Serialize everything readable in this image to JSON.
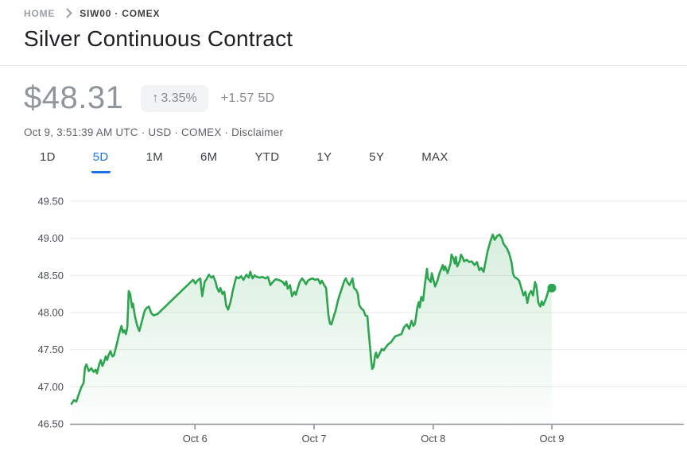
{
  "breadcrumb": {
    "home": "HOME",
    "symbol": "SIW00 · COMEX"
  },
  "header": {
    "title": "Silver Continuous Contract"
  },
  "quote": {
    "price": "$48.31",
    "arrow": "↑",
    "change_percent": "3.35%",
    "change_abs": "+1.57 5D",
    "meta_text": "Oct 9, 3:51:39 AM UTC · USD · COMEX · ",
    "disclaimer": "Disclaimer"
  },
  "tabs": [
    {
      "label": "1D",
      "active": false
    },
    {
      "label": "5D",
      "active": true
    },
    {
      "label": "1M",
      "active": false
    },
    {
      "label": "6M",
      "active": false
    },
    {
      "label": "YTD",
      "active": false
    },
    {
      "label": "1Y",
      "active": false
    },
    {
      "label": "5Y",
      "active": false
    },
    {
      "label": "MAX",
      "active": false
    }
  ],
  "colors": {
    "accent_blue": "#1a73e8",
    "chart_green": "#2da44e",
    "pill_bg": "#f1f3f4",
    "price_gray": "#8f959b",
    "grid_line": "#e9eaec",
    "axis_line": "#8a9095",
    "axis_text": "#4a4e52"
  },
  "chart_data": {
    "type": "area",
    "title": "Silver Continuous Contract — 5D price chart",
    "xlabel": "",
    "ylabel": "",
    "ylim": [
      46.5,
      49.5
    ],
    "grid": true,
    "legend": "none",
    "y_ticks": [
      {
        "label": "49.50",
        "value": 49.5
      },
      {
        "label": "49.00",
        "value": 49.0
      },
      {
        "label": "48.50",
        "value": 48.5
      },
      {
        "label": "48.00",
        "value": 48.0
      },
      {
        "label": "47.50",
        "value": 47.5
      },
      {
        "label": "47.00",
        "value": 47.0
      },
      {
        "label": "46.50",
        "value": 46.5
      }
    ],
    "x_ticks": [
      {
        "label": "Oct 6",
        "t": 0.257
      },
      {
        "label": "Oct 7",
        "t": 0.505
      },
      {
        "label": "Oct 8",
        "t": 0.753
      },
      {
        "label": "Oct 9",
        "t": 1.0
      }
    ],
    "series": [
      {
        "name": "price",
        "points": [
          [
            0.0,
            46.77
          ],
          [
            0.005,
            46.82
          ],
          [
            0.01,
            46.8
          ],
          [
            0.015,
            46.9
          ],
          [
            0.02,
            46.99
          ],
          [
            0.025,
            47.05
          ],
          [
            0.028,
            47.26
          ],
          [
            0.031,
            47.3
          ],
          [
            0.036,
            47.21
          ],
          [
            0.041,
            47.25
          ],
          [
            0.046,
            47.2
          ],
          [
            0.05,
            47.23
          ],
          [
            0.053,
            47.18
          ],
          [
            0.058,
            47.31
          ],
          [
            0.061,
            47.36
          ],
          [
            0.064,
            47.28
          ],
          [
            0.068,
            47.34
          ],
          [
            0.071,
            47.41
          ],
          [
            0.074,
            47.36
          ],
          [
            0.078,
            47.44
          ],
          [
            0.081,
            47.48
          ],
          [
            0.085,
            47.41
          ],
          [
            0.088,
            47.42
          ],
          [
            0.094,
            47.57
          ],
          [
            0.099,
            47.71
          ],
          [
            0.102,
            47.78
          ],
          [
            0.104,
            47.82
          ],
          [
            0.107,
            47.73
          ],
          [
            0.11,
            47.76
          ],
          [
            0.113,
            47.71
          ],
          [
            0.116,
            47.8
          ],
          [
            0.119,
            48.29
          ],
          [
            0.122,
            48.25
          ],
          [
            0.126,
            48.07
          ],
          [
            0.128,
            48.12
          ],
          [
            0.132,
            47.95
          ],
          [
            0.137,
            47.82
          ],
          [
            0.141,
            47.75
          ],
          [
            0.146,
            47.87
          ],
          [
            0.152,
            48.02
          ],
          [
            0.156,
            48.06
          ],
          [
            0.161,
            48.08
          ],
          [
            0.166,
            47.99
          ],
          [
            0.171,
            47.96
          ],
          [
            0.179,
            47.98
          ],
          [
            0.248,
            48.41
          ],
          [
            0.253,
            48.44
          ],
          [
            0.258,
            48.39
          ],
          [
            0.262,
            48.43
          ],
          [
            0.268,
            48.46
          ],
          [
            0.272,
            48.22
          ],
          [
            0.277,
            48.41
          ],
          [
            0.281,
            48.45
          ],
          [
            0.286,
            48.51
          ],
          [
            0.291,
            48.47
          ],
          [
            0.295,
            48.49
          ],
          [
            0.3,
            48.41
          ],
          [
            0.303,
            48.33
          ],
          [
            0.307,
            48.28
          ],
          [
            0.31,
            48.33
          ],
          [
            0.314,
            48.25
          ],
          [
            0.318,
            48.28
          ],
          [
            0.322,
            48.09
          ],
          [
            0.326,
            48.04
          ],
          [
            0.331,
            48.14
          ],
          [
            0.336,
            48.3
          ],
          [
            0.34,
            48.41
          ],
          [
            0.343,
            48.48
          ],
          [
            0.348,
            48.46
          ],
          [
            0.353,
            48.49
          ],
          [
            0.358,
            48.44
          ],
          [
            0.364,
            48.51
          ],
          [
            0.369,
            48.47
          ],
          [
            0.372,
            48.55
          ],
          [
            0.377,
            48.46
          ],
          [
            0.381,
            48.5
          ],
          [
            0.386,
            48.48
          ],
          [
            0.392,
            48.47
          ],
          [
            0.397,
            48.48
          ],
          [
            0.404,
            48.46
          ],
          [
            0.409,
            48.48
          ],
          [
            0.414,
            48.37
          ],
          [
            0.419,
            48.41
          ],
          [
            0.425,
            48.45
          ],
          [
            0.43,
            48.44
          ],
          [
            0.435,
            48.43
          ],
          [
            0.44,
            48.41
          ],
          [
            0.444,
            48.37
          ],
          [
            0.447,
            48.42
          ],
          [
            0.45,
            48.32
          ],
          [
            0.455,
            48.37
          ],
          [
            0.459,
            48.22
          ],
          [
            0.464,
            48.28
          ],
          [
            0.467,
            48.24
          ],
          [
            0.472,
            48.35
          ],
          [
            0.475,
            48.41
          ],
          [
            0.48,
            48.46
          ],
          [
            0.485,
            48.42
          ],
          [
            0.488,
            48.38
          ],
          [
            0.492,
            48.43
          ],
          [
            0.497,
            48.45
          ],
          [
            0.502,
            48.46
          ],
          [
            0.507,
            48.44
          ],
          [
            0.513,
            48.45
          ],
          [
            0.518,
            48.39
          ],
          [
            0.521,
            48.43
          ],
          [
            0.526,
            48.37
          ],
          [
            0.53,
            48.33
          ],
          [
            0.535,
            47.96
          ],
          [
            0.538,
            47.85
          ],
          [
            0.541,
            47.84
          ],
          [
            0.546,
            47.95
          ],
          [
            0.55,
            48.03
          ],
          [
            0.555,
            48.17
          ],
          [
            0.558,
            48.23
          ],
          [
            0.563,
            48.33
          ],
          [
            0.568,
            48.43
          ],
          [
            0.571,
            48.46
          ],
          [
            0.574,
            48.41
          ],
          [
            0.579,
            48.37
          ],
          [
            0.583,
            48.43
          ],
          [
            0.585,
            48.46
          ],
          [
            0.588,
            48.33
          ],
          [
            0.593,
            48.3
          ],
          [
            0.596,
            48.25
          ],
          [
            0.599,
            48.1
          ],
          [
            0.604,
            48.05
          ],
          [
            0.608,
            48.03
          ],
          [
            0.612,
            47.96
          ],
          [
            0.616,
            47.95
          ],
          [
            0.618,
            47.78
          ],
          [
            0.621,
            47.57
          ],
          [
            0.624,
            47.35
          ],
          [
            0.626,
            47.24
          ],
          [
            0.629,
            47.27
          ],
          [
            0.632,
            47.42
          ],
          [
            0.634,
            47.46
          ],
          [
            0.637,
            47.39
          ],
          [
            0.641,
            47.44
          ],
          [
            0.646,
            47.51
          ],
          [
            0.65,
            47.49
          ],
          [
            0.654,
            47.53
          ],
          [
            0.659,
            47.57
          ],
          [
            0.665,
            47.6
          ],
          [
            0.674,
            47.68
          ],
          [
            0.679,
            47.69
          ],
          [
            0.687,
            47.71
          ],
          [
            0.692,
            47.8
          ],
          [
            0.698,
            47.84
          ],
          [
            0.703,
            47.78
          ],
          [
            0.708,
            47.89
          ],
          [
            0.712,
            47.82
          ],
          [
            0.715,
            47.85
          ],
          [
            0.72,
            48.07
          ],
          [
            0.723,
            48.14
          ],
          [
            0.725,
            48.07
          ],
          [
            0.728,
            48.21
          ],
          [
            0.732,
            48.16
          ],
          [
            0.736,
            48.39
          ],
          [
            0.74,
            48.59
          ],
          [
            0.742,
            48.46
          ],
          [
            0.748,
            48.41
          ],
          [
            0.75,
            48.53
          ],
          [
            0.757,
            48.35
          ],
          [
            0.762,
            48.43
          ],
          [
            0.766,
            48.53
          ],
          [
            0.773,
            48.64
          ],
          [
            0.775,
            48.57
          ],
          [
            0.778,
            48.62
          ],
          [
            0.783,
            48.53
          ],
          [
            0.789,
            48.66
          ],
          [
            0.791,
            48.78
          ],
          [
            0.795,
            48.73
          ],
          [
            0.798,
            48.66
          ],
          [
            0.8,
            48.75
          ],
          [
            0.803,
            48.62
          ],
          [
            0.808,
            48.69
          ],
          [
            0.811,
            48.78
          ],
          [
            0.815,
            48.73
          ],
          [
            0.817,
            48.69
          ],
          [
            0.823,
            48.71
          ],
          [
            0.828,
            48.68
          ],
          [
            0.833,
            48.69
          ],
          [
            0.839,
            48.64
          ],
          [
            0.844,
            48.68
          ],
          [
            0.849,
            48.57
          ],
          [
            0.853,
            48.6
          ],
          [
            0.858,
            48.55
          ],
          [
            0.866,
            48.82
          ],
          [
            0.872,
            48.96
          ],
          [
            0.877,
            49.05
          ],
          [
            0.881,
            48.98
          ],
          [
            0.886,
            49.03
          ],
          [
            0.891,
            49.05
          ],
          [
            0.896,
            49.0
          ],
          [
            0.899,
            48.93
          ],
          [
            0.906,
            48.87
          ],
          [
            0.911,
            48.8
          ],
          [
            0.916,
            48.68
          ],
          [
            0.919,
            48.53
          ],
          [
            0.922,
            48.48
          ],
          [
            0.927,
            48.46
          ],
          [
            0.932,
            48.43
          ],
          [
            0.937,
            48.32
          ],
          [
            0.941,
            48.23
          ],
          [
            0.945,
            48.28
          ],
          [
            0.949,
            48.13
          ],
          [
            0.953,
            48.25
          ],
          [
            0.957,
            48.29
          ],
          [
            0.961,
            48.23
          ],
          [
            0.965,
            48.41
          ],
          [
            0.968,
            48.35
          ],
          [
            0.972,
            48.13
          ],
          [
            0.976,
            48.08
          ],
          [
            0.979,
            48.15
          ],
          [
            0.982,
            48.1
          ],
          [
            0.988,
            48.19
          ],
          [
            0.993,
            48.3
          ],
          [
            1.0,
            48.33
          ]
        ]
      }
    ]
  }
}
